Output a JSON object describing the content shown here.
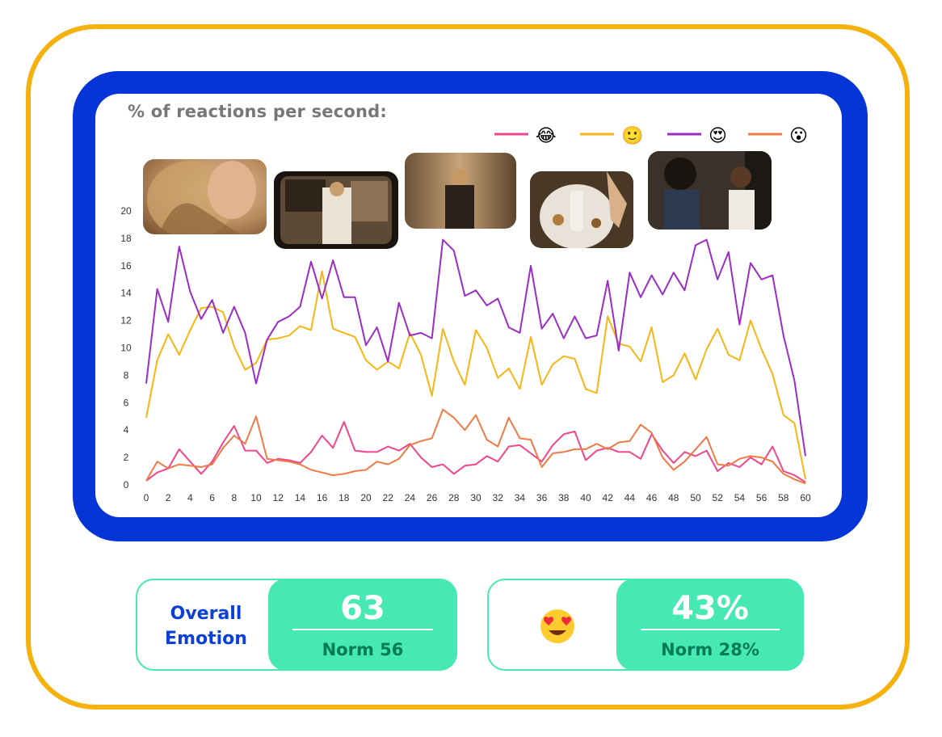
{
  "chart_data": {
    "type": "line",
    "title": "% of reactions per second:",
    "x": [
      0,
      1,
      2,
      3,
      4,
      5,
      6,
      7,
      8,
      9,
      10,
      11,
      12,
      13,
      14,
      15,
      16,
      17,
      18,
      19,
      20,
      21,
      22,
      23,
      24,
      25,
      26,
      27,
      28,
      29,
      30,
      31,
      32,
      33,
      34,
      35,
      36,
      37,
      38,
      39,
      40,
      41,
      42,
      43,
      44,
      45,
      46,
      47,
      48,
      49,
      50,
      51,
      52,
      53,
      54,
      55,
      56,
      57,
      58,
      59,
      60
    ],
    "xticks": [
      0,
      2,
      4,
      6,
      8,
      10,
      12,
      14,
      16,
      18,
      20,
      22,
      24,
      26,
      28,
      30,
      32,
      34,
      36,
      38,
      40,
      42,
      44,
      46,
      48,
      50,
      52,
      54,
      56,
      58,
      60
    ],
    "yticks": [
      0,
      2,
      4,
      6,
      8,
      10,
      12,
      14,
      16,
      18,
      20
    ],
    "xlim": [
      0,
      60
    ],
    "ylim": [
      0,
      20
    ],
    "grid": false,
    "legend_position": "top-right",
    "series": [
      {
        "name": "😂",
        "color": "#f0468c",
        "values": [
          0.3,
          0.9,
          1.2,
          2.6,
          1.7,
          0.8,
          1.7,
          3.1,
          4.3,
          2.5,
          2.5,
          1.6,
          1.9,
          1.8,
          1.6,
          2.4,
          3.6,
          2.7,
          4.6,
          2.5,
          2.4,
          2.4,
          2.8,
          2.5,
          3.0,
          2.0,
          1.3,
          1.5,
          0.8,
          1.4,
          1.5,
          2.1,
          1.7,
          2.8,
          2.9,
          2.3,
          1.7,
          2.9,
          3.7,
          3.9,
          1.8,
          2.5,
          2.7,
          2.4,
          2.4,
          1.9,
          3.7,
          2.5,
          1.6,
          2.4,
          2.1,
          2.5,
          1.0,
          1.6,
          1.3,
          2.0,
          1.5,
          2.8,
          1.0,
          0.7,
          0.2
        ]
      },
      {
        "name": "🙂",
        "color": "#f8b514",
        "values": [
          4.9,
          9.1,
          11.0,
          9.5,
          11.3,
          12.9,
          13.0,
          12.6,
          10.1,
          8.4,
          8.9,
          10.6,
          10.7,
          10.9,
          11.6,
          11.3,
          15.6,
          11.4,
          11.1,
          10.8,
          9.1,
          8.4,
          9.0,
          8.5,
          11.1,
          9.5,
          6.5,
          11.4,
          9.0,
          7.3,
          11.3,
          10.0,
          7.8,
          8.5,
          7.0,
          10.8,
          7.3,
          8.8,
          9.4,
          9.2,
          7.0,
          6.7,
          12.3,
          10.3,
          10.1,
          9.0,
          11.5,
          7.5,
          8.0,
          9.6,
          7.7,
          9.9,
          11.4,
          9.5,
          9.1,
          12.0,
          9.9,
          8.1,
          5.1,
          4.5,
          0.4
        ]
      },
      {
        "name": "😍",
        "color": "#9b2dc6",
        "values": [
          7.4,
          14.3,
          11.9,
          17.4,
          14.1,
          12.1,
          13.5,
          11.1,
          13.0,
          11.1,
          7.4,
          10.6,
          11.9,
          12.3,
          13.0,
          16.3,
          13.6,
          16.4,
          13.7,
          13.7,
          10.2,
          11.5,
          9.0,
          13.3,
          10.9,
          11.1,
          10.7,
          17.9,
          17.1,
          13.8,
          14.2,
          13.1,
          13.6,
          11.5,
          11.1,
          16.0,
          11.4,
          12.5,
          10.7,
          12.3,
          10.7,
          10.9,
          14.9,
          9.8,
          15.5,
          13.7,
          15.3,
          13.9,
          15.5,
          14.2,
          17.5,
          17.9,
          15.0,
          17.0,
          11.7,
          16.2,
          15.0,
          15.3,
          10.9,
          7.6,
          2.1
        ]
      },
      {
        "name": "😮",
        "color": "#f07a45",
        "values": [
          0.3,
          1.7,
          1.2,
          1.5,
          1.4,
          1.3,
          1.5,
          2.7,
          3.6,
          3.0,
          5.0,
          1.9,
          1.8,
          1.7,
          1.5,
          1.1,
          0.9,
          0.7,
          0.8,
          1.0,
          1.1,
          1.7,
          1.5,
          1.9,
          2.9,
          3.2,
          3.4,
          5.5,
          4.9,
          4.0,
          5.1,
          3.3,
          2.8,
          4.9,
          3.4,
          3.3,
          1.3,
          2.3,
          2.4,
          2.6,
          2.6,
          3.0,
          2.6,
          3.1,
          3.2,
          4.4,
          3.8,
          2.0,
          1.1,
          1.7,
          2.6,
          3.5,
          1.5,
          1.4,
          1.9,
          2.1,
          2.0,
          1.7,
          0.8,
          0.4,
          0.1
        ]
      }
    ]
  },
  "cards": [
    {
      "label_line1": "Overall",
      "label_line2": "Emotion",
      "value": "63",
      "norm": "Norm 56"
    },
    {
      "emoji_icon": "heart-eyes-emoji-icon",
      "value": "43%",
      "norm": "Norm 28%"
    }
  ],
  "thumbnails": [
    {
      "icon": "woman-hair-closeup-image"
    },
    {
      "icon": "woman-on-tv-image"
    },
    {
      "icon": "woman-in-room-image"
    },
    {
      "icon": "product-plate-image"
    },
    {
      "icon": "two-women-image"
    }
  ]
}
